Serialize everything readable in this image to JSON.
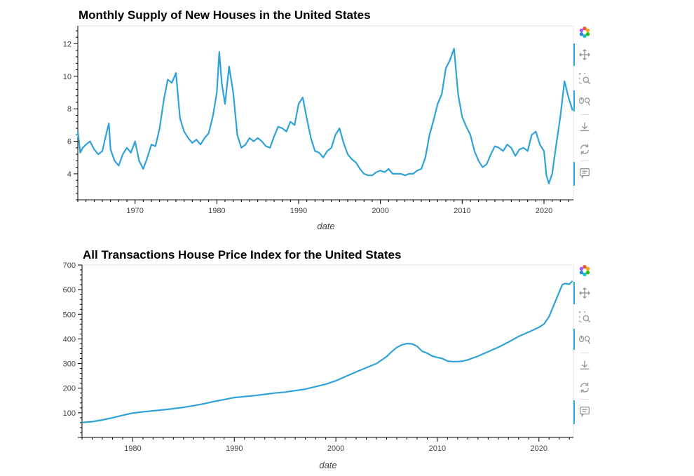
{
  "colors": {
    "line": "#30a2da",
    "toolbar_accent": "#26aae1"
  },
  "toolbar_icons": [
    "bokeh-logo-icon",
    "pan-icon",
    "box-zoom-icon",
    "wheel-zoom-icon",
    "save-icon",
    "reset-icon",
    "hover-icon"
  ],
  "chart_data": [
    {
      "type": "line",
      "title": "Monthly Supply of New Houses in the United States",
      "xlabel": "date",
      "ylabel": "",
      "xlim": [
        1963.0,
        2023.6
      ],
      "ylim": [
        2.4,
        13.1
      ],
      "xticks": [
        "1970",
        "1980",
        "1990",
        "2000",
        "2010",
        "2020"
      ],
      "yticks": [
        "4",
        "6",
        "8",
        "10",
        "12"
      ],
      "grid": false,
      "series": [
        {
          "x": [
            1963.0,
            1963.3,
            1963.6,
            1964.0,
            1964.5,
            1965.0,
            1965.5,
            1966.0,
            1966.5,
            1966.8,
            1967.0,
            1967.5,
            1968.0,
            1968.5,
            1969.0,
            1969.5,
            1970.0,
            1970.5,
            1971.0,
            1971.5,
            1972.0,
            1972.5,
            1973.0,
            1973.5,
            1974.0,
            1974.5,
            1975.0,
            1975.5,
            1976.0,
            1976.5,
            1977.0,
            1977.5,
            1978.0,
            1978.5,
            1979.0,
            1979.5,
            1980.0,
            1980.3,
            1980.6,
            1981.0,
            1981.5,
            1982.0,
            1982.5,
            1983.0,
            1983.5,
            1984.0,
            1984.5,
            1985.0,
            1985.5,
            1986.0,
            1986.5,
            1987.0,
            1987.5,
            1988.0,
            1988.5,
            1989.0,
            1989.5,
            1990.0,
            1990.5,
            1991.0,
            1991.5,
            1992.0,
            1992.5,
            1993.0,
            1993.5,
            1994.0,
            1994.5,
            1995.0,
            1995.5,
            1996.0,
            1996.5,
            1997.0,
            1997.5,
            1998.0,
            1998.5,
            1999.0,
            1999.5,
            2000.0,
            2000.5,
            2001.0,
            2001.5,
            2002.0,
            2002.5,
            2003.0,
            2003.5,
            2004.0,
            2004.5,
            2005.0,
            2005.5,
            2006.0,
            2006.5,
            2007.0,
            2007.5,
            2008.0,
            2008.5,
            2009.0,
            2009.5,
            2010.0,
            2010.5,
            2011.0,
            2011.5,
            2012.0,
            2012.5,
            2013.0,
            2013.5,
            2014.0,
            2014.5,
            2015.0,
            2015.5,
            2016.0,
            2016.5,
            2017.0,
            2017.5,
            2018.0,
            2018.5,
            2019.0,
            2019.5,
            2020.0,
            2020.3,
            2020.6,
            2021.0,
            2021.5,
            2022.0,
            2022.5,
            2023.0,
            2023.5
          ],
          "y": [
            6.6,
            5.3,
            5.6,
            5.8,
            6.0,
            5.5,
            5.2,
            5.4,
            6.5,
            7.1,
            5.5,
            4.8,
            4.5,
            5.2,
            5.6,
            5.3,
            6.0,
            4.8,
            4.3,
            5.0,
            5.8,
            5.7,
            6.8,
            8.5,
            9.8,
            9.6,
            10.2,
            7.4,
            6.6,
            6.2,
            5.9,
            6.1,
            5.8,
            6.2,
            6.5,
            7.5,
            9.0,
            11.5,
            9.6,
            8.3,
            10.6,
            9.0,
            6.4,
            5.6,
            5.8,
            6.2,
            6.0,
            6.2,
            6.0,
            5.7,
            5.6,
            6.3,
            6.9,
            6.8,
            6.6,
            7.2,
            7.0,
            8.3,
            8.7,
            7.4,
            6.2,
            5.4,
            5.3,
            5.0,
            5.4,
            5.6,
            6.4,
            6.8,
            5.9,
            5.2,
            4.9,
            4.7,
            4.3,
            4.0,
            3.9,
            3.9,
            4.1,
            4.2,
            4.1,
            4.3,
            4.0,
            4.0,
            4.0,
            3.9,
            4.0,
            4.0,
            4.2,
            4.3,
            5.0,
            6.4,
            7.3,
            8.3,
            8.9,
            10.5,
            11.0,
            11.7,
            8.9,
            7.5,
            6.9,
            6.4,
            5.4,
            4.8,
            4.4,
            4.6,
            5.2,
            5.7,
            5.6,
            5.4,
            5.8,
            5.6,
            5.1,
            5.5,
            5.6,
            5.4,
            6.4,
            6.6,
            5.8,
            5.4,
            3.9,
            3.4,
            4.0,
            5.8,
            7.5,
            9.7,
            8.7,
            7.9
          ]
        }
      ]
    },
    {
      "type": "line",
      "title": "All Transactions House Price Index for the United States",
      "xlabel": "date",
      "ylabel": "",
      "xlim": [
        1975.0,
        2023.4
      ],
      "ylim": [
        0,
        700
      ],
      "xticks": [
        "1980",
        "1990",
        "2000",
        "2010",
        "2020"
      ],
      "yticks": [
        "100",
        "200",
        "300",
        "400",
        "500",
        "600",
        "700"
      ],
      "grid": false,
      "series": [
        {
          "x": [
            1975.0,
            1976.0,
            1977.0,
            1978.0,
            1979.0,
            1980.0,
            1981.0,
            1982.0,
            1983.0,
            1984.0,
            1985.0,
            1986.0,
            1987.0,
            1988.0,
            1989.0,
            1990.0,
            1991.0,
            1992.0,
            1993.0,
            1994.0,
            1995.0,
            1996.0,
            1997.0,
            1998.0,
            1999.0,
            2000.0,
            2001.0,
            2002.0,
            2003.0,
            2004.0,
            2005.0,
            2005.5,
            2006.0,
            2006.5,
            2007.0,
            2007.5,
            2008.0,
            2008.5,
            2009.0,
            2009.5,
            2010.0,
            2010.5,
            2011.0,
            2011.5,
            2012.0,
            2012.5,
            2013.0,
            2014.0,
            2015.0,
            2016.0,
            2017.0,
            2018.0,
            2019.0,
            2020.0,
            2020.5,
            2021.0,
            2021.5,
            2022.0,
            2022.3,
            2022.6,
            2023.0,
            2023.3
          ],
          "y": [
            61,
            64,
            71,
            80,
            90,
            99,
            104,
            108,
            112,
            117,
            122,
            129,
            137,
            146,
            154,
            162,
            166,
            170,
            175,
            180,
            184,
            190,
            196,
            206,
            216,
            230,
            248,
            266,
            283,
            300,
            328,
            348,
            365,
            376,
            381,
            380,
            370,
            350,
            342,
            330,
            325,
            320,
            310,
            308,
            308,
            310,
            315,
            330,
            348,
            366,
            387,
            410,
            428,
            447,
            460,
            490,
            540,
            590,
            620,
            625,
            622,
            635
          ]
        }
      ]
    }
  ]
}
